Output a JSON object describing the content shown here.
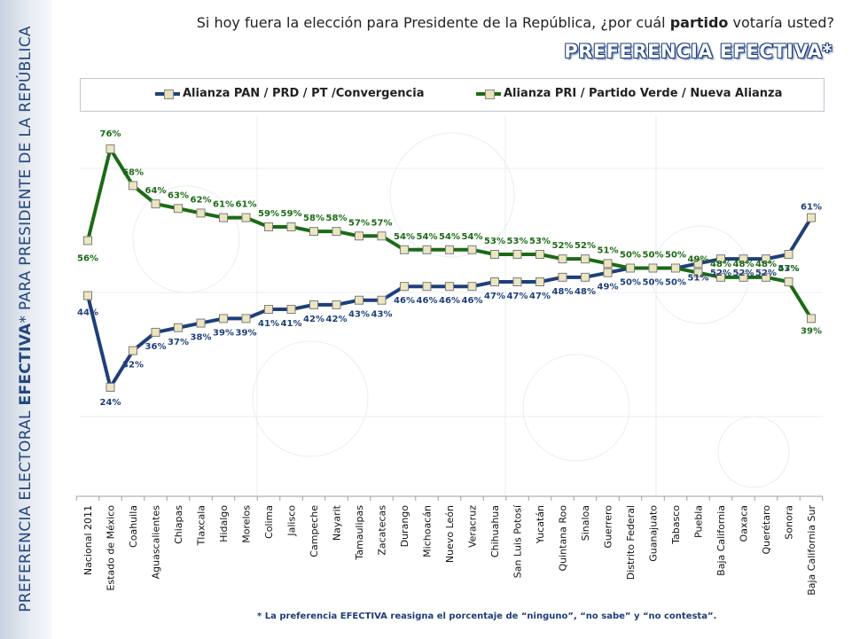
{
  "sidebar": {
    "prefix": "PREFERENCIA ELECTORAL ",
    "emphasis": "EFECTIVA",
    "suffix": "* PARA PRESIDENTE DE LA REPÚBLICA"
  },
  "header": {
    "question_prefix": "Si hoy fuera la elección para Presidente de la República, ¿por cuál ",
    "question_bold": "partido",
    "question_suffix": " votaría usted?",
    "subtitle": "PREFERENCIA EFECTIVA*"
  },
  "footnote": "* La preferencia EFECTIVA reasigna el porcentaje de “ninguno”, “no sabe” y “no contesta”.",
  "colors": {
    "blue_series": "#1f3f7a",
    "green_series": "#1c6a16",
    "blue_label": "#1f3f7a",
    "green_label": "#1c6a16",
    "title_blue": "#23467e"
  },
  "chart_data": {
    "type": "line",
    "title": "",
    "xlabel": "",
    "ylabel": "",
    "ylim": [
      0,
      100
    ],
    "grid": false,
    "legend_position": "top",
    "categories": [
      "Nacional 2011",
      "Estado de México",
      "Coahuila",
      "Aguascalientes",
      "Chiapas",
      "Tlaxcala",
      "Hidalgo",
      "Morelos",
      "Colima",
      "Jalisco",
      "Campeche",
      "Nayarit",
      "Tamaulipas",
      "Zacatecas",
      "Durango",
      "Michoacán",
      "Nuevo León",
      "Veracruz",
      "Chihuahua",
      "San Luis Potosí",
      "Yucatán",
      "Quintana Roo",
      "Sinaloa",
      "Guerrero",
      "Distrito Federal",
      "Guanajuato",
      "Tabasco",
      "Puebla",
      "Baja California",
      "Oaxaca",
      "Querétaro",
      "Sonora",
      "Baja California Sur"
    ],
    "series": [
      {
        "name": "Alianza PAN / PRD / PT /Convergencia",
        "values": [
          44,
          24,
          32,
          36,
          37,
          38,
          39,
          39,
          41,
          41,
          42,
          42,
          43,
          43,
          46,
          46,
          46,
          46,
          47,
          47,
          47,
          48,
          48,
          49,
          50,
          50,
          50,
          51,
          52,
          52,
          52,
          53,
          61
        ],
        "labels": [
          "44%",
          "24%",
          "32%",
          "36%",
          "37%",
          "38%",
          "39%",
          "39%",
          "41%",
          "41%",
          "42%",
          "42%",
          "43%",
          "43%",
          "46%",
          "46%",
          "46%",
          "46%",
          "47%",
          "47%",
          "47%",
          "48%",
          "48%",
          "49%",
          "50%",
          "50%",
          "50%",
          "51%",
          "52%",
          "52%",
          "52%",
          "53%",
          "61%"
        ]
      },
      {
        "name": "Alianza PRI / Partido Verde / Nueva Alianza",
        "values": [
          56,
          76,
          68,
          64,
          63,
          62,
          61,
          61,
          59,
          59,
          58,
          58,
          57,
          57,
          54,
          54,
          54,
          54,
          53,
          53,
          53,
          52,
          52,
          51,
          50,
          50,
          50,
          49,
          48,
          48,
          48,
          47,
          39
        ],
        "labels": [
          "56%",
          "76%",
          "68%",
          "64%",
          "63%",
          "62%",
          "61%",
          "61%",
          "59%",
          "59%",
          "58%",
          "58%",
          "57%",
          "57%",
          "54%",
          "54%",
          "54%",
          "54%",
          "53%",
          "53%",
          "53%",
          "52%",
          "52%",
          "51%",
          "50%",
          "50%",
          "50%",
          "49%",
          "48%",
          "48%",
          "48%",
          "47%",
          "39%"
        ]
      }
    ]
  }
}
